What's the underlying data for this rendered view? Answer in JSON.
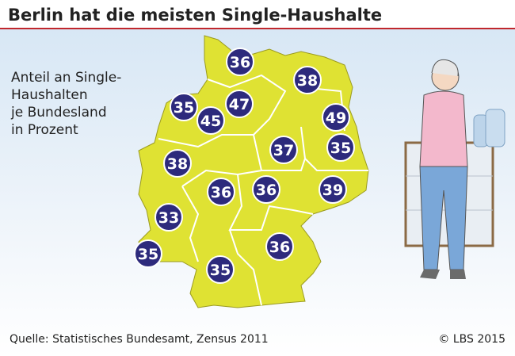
{
  "header": {
    "title": "Berlin hat die meisten Single-Haushalte"
  },
  "legend": {
    "lines": [
      "Anteil an Single-",
      "Haushalten",
      "je Bundesland",
      "in Prozent"
    ]
  },
  "map": {
    "values": [
      36,
      38,
      35,
      47,
      45,
      49,
      35,
      37,
      38,
      36,
      36,
      39,
      33,
      35,
      36,
      35
    ]
  },
  "footer": {
    "source": "Quelle: Statistisches Bundesamt, Zensus 2011",
    "copyright": "© LBS 2015"
  }
}
